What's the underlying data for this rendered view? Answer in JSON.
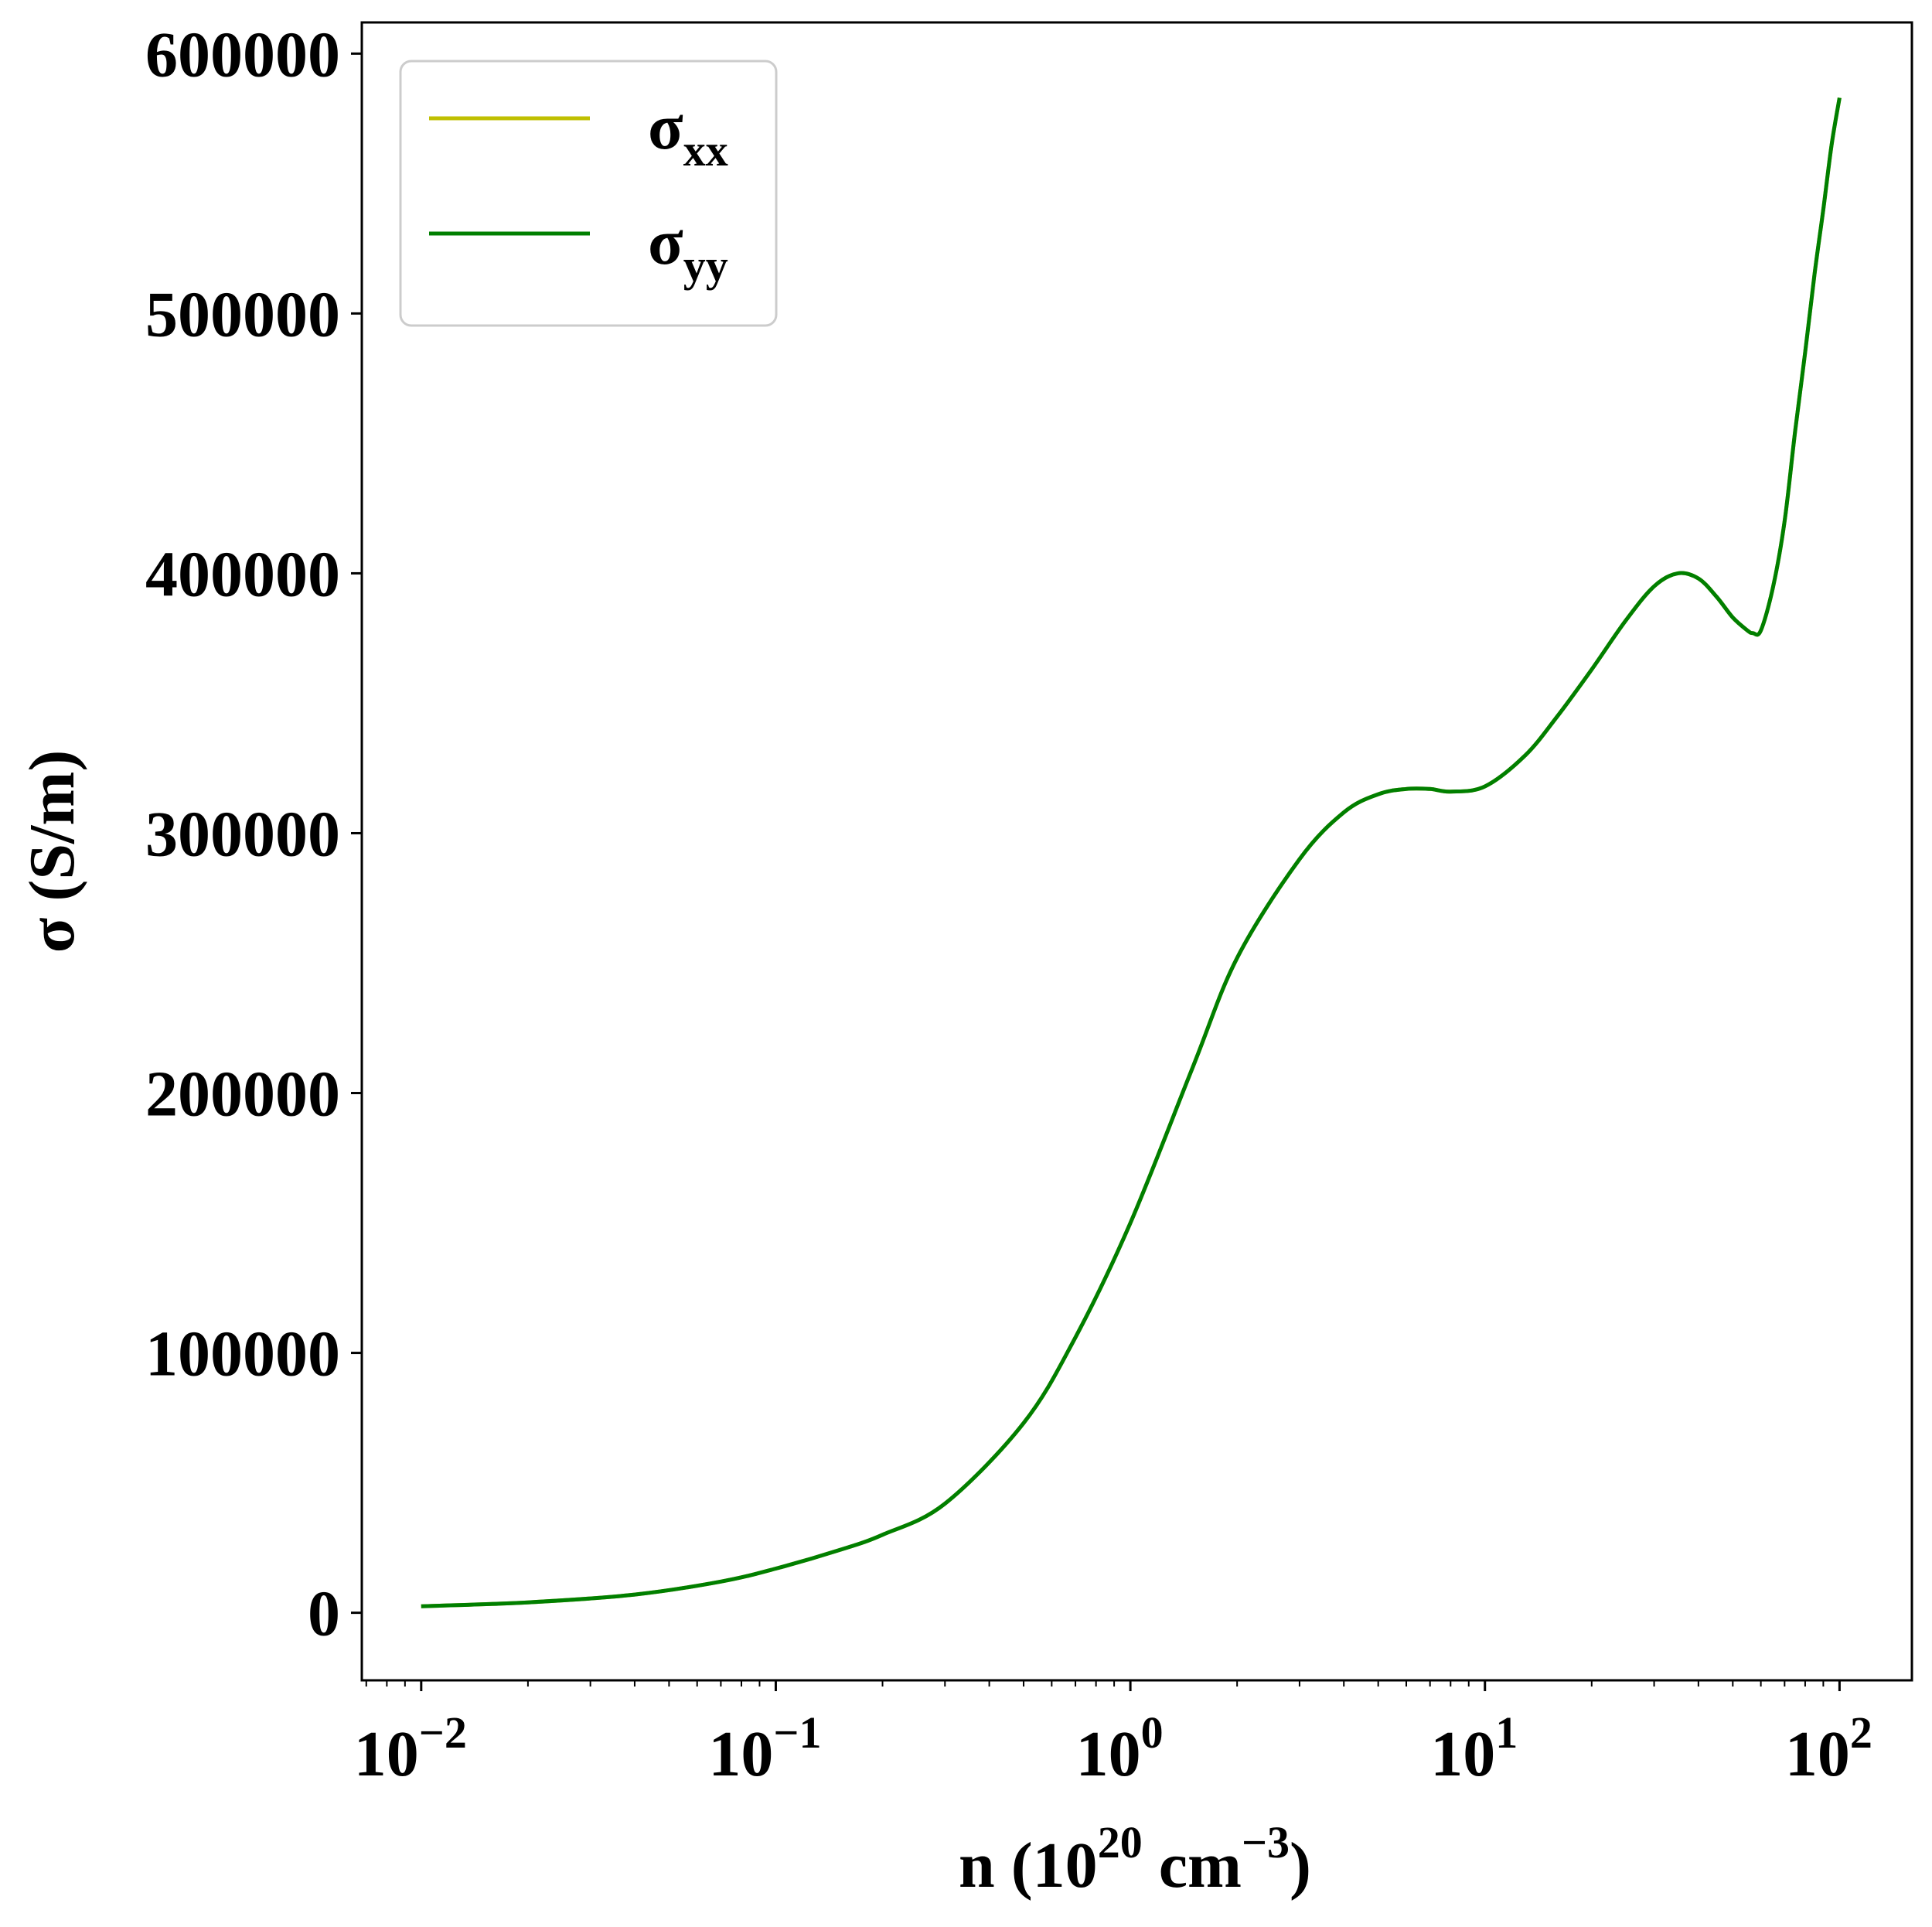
{
  "chart_data": {
    "type": "line",
    "title": "",
    "xlabel": {
      "base": "n (10",
      "exp1": "20",
      "mid": " cm",
      "exp2": "−3",
      "end": ")"
    },
    "ylabel": "σ (S/m)",
    "xscale": "log",
    "xlim": [
      0.0068,
      160
    ],
    "ylim": [
      -26000,
      612000
    ],
    "x_ticks": [
      {
        "value": 0.01,
        "base": "10",
        "exp": "−2"
      },
      {
        "value": 0.1,
        "base": "10",
        "exp": "−1"
      },
      {
        "value": 1,
        "base": "10",
        "exp": "0"
      },
      {
        "value": 10,
        "base": "10",
        "exp": "1"
      },
      {
        "value": 100,
        "base": "10",
        "exp": "2"
      }
    ],
    "y_ticks": [
      0,
      100000,
      200000,
      300000,
      400000,
      500000,
      600000
    ],
    "grid": false,
    "legend_position": "top-left",
    "series": [
      {
        "name": "σ",
        "subscript": "xx",
        "color": "#bfbf00",
        "x": [
          0.01,
          0.02,
          0.04,
          0.07,
          0.1,
          0.15,
          0.2,
          0.3,
          0.5,
          0.7,
          1.0,
          1.5,
          2.0,
          3.0,
          4.0,
          5.0,
          6.0,
          7.0,
          8.0,
          10.0,
          13.0,
          16.0,
          20.0,
          25.0,
          30.0,
          35.0,
          40.0,
          45.0,
          50.0,
          55.0,
          57.0,
          60.0,
          65.0,
          70.0,
          75.0,
          80.0,
          85.0,
          90.0,
          95.0,
          100.0
        ],
        "y": [
          2500,
          4000,
          7000,
          12000,
          17000,
          24000,
          30000,
          42000,
          73000,
          106000,
          150000,
          210000,
          252000,
          290000,
          308000,
          315000,
          317000,
          317000,
          316000,
          318000,
          330000,
          345000,
          363000,
          382000,
          395000,
          400000,
          398000,
          391000,
          383000,
          378000,
          377000,
          378000,
          395000,
          420000,
          455000,
          485000,
          515000,
          540000,
          565000,
          583000
        ]
      },
      {
        "name": "σ",
        "subscript": "yy",
        "color": "#007f00",
        "x": [
          0.01,
          0.02,
          0.04,
          0.07,
          0.1,
          0.15,
          0.2,
          0.3,
          0.5,
          0.7,
          1.0,
          1.5,
          2.0,
          3.0,
          4.0,
          5.0,
          6.0,
          7.0,
          8.0,
          10.0,
          13.0,
          16.0,
          20.0,
          25.0,
          30.0,
          35.0,
          40.0,
          45.0,
          50.0,
          55.0,
          57.0,
          60.0,
          65.0,
          70.0,
          75.0,
          80.0,
          85.0,
          90.0,
          95.0,
          100.0
        ],
        "y": [
          2500,
          4000,
          7000,
          12000,
          17000,
          24000,
          30000,
          42000,
          73000,
          106000,
          150000,
          210000,
          252000,
          290000,
          308000,
          315000,
          317000,
          317000,
          316000,
          318000,
          330000,
          345000,
          363000,
          382000,
          395000,
          400000,
          398000,
          391000,
          383000,
          378000,
          377000,
          378000,
          395000,
          420000,
          455000,
          485000,
          515000,
          540000,
          565000,
          583000
        ]
      }
    ]
  }
}
